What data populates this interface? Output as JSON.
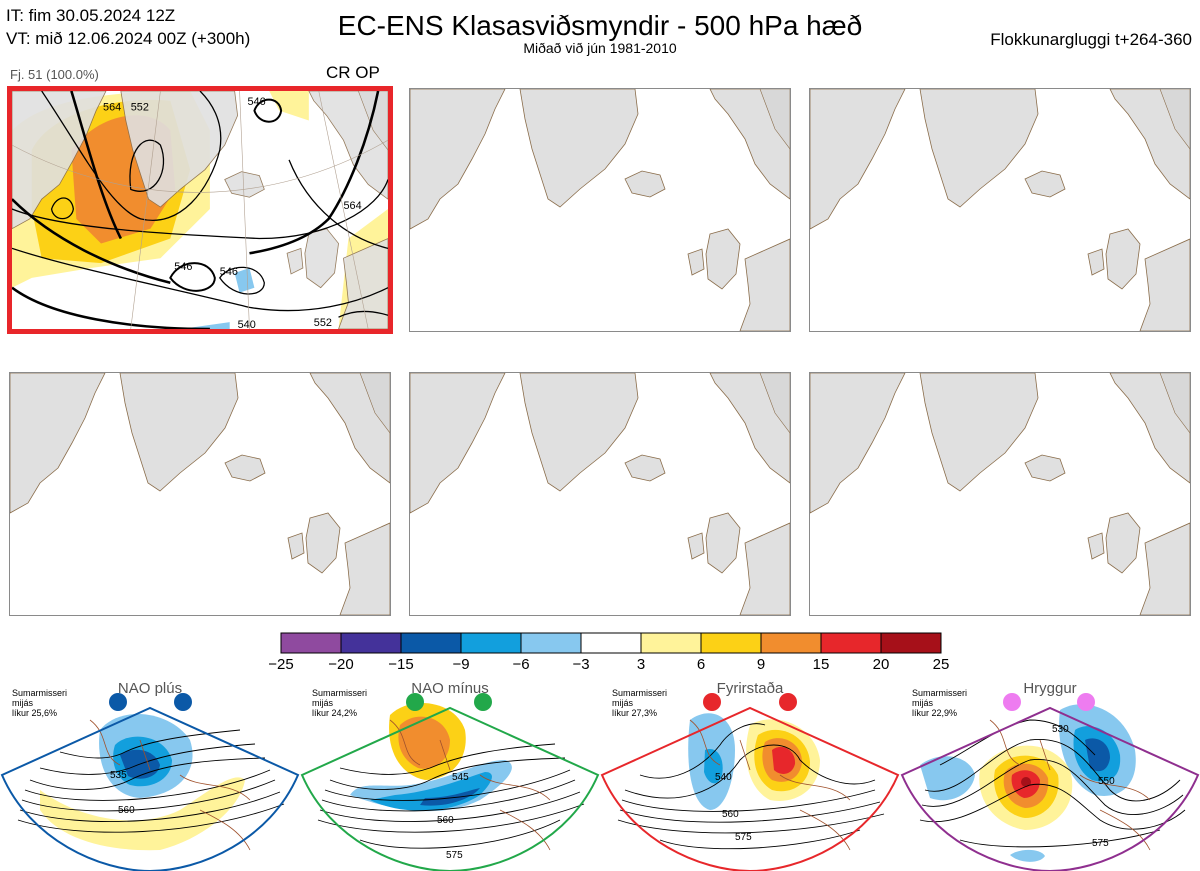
{
  "header": {
    "init_time": "IT: fim 30.05.2024 12Z",
    "valid_time": "VT: mið 12.06.2024 00Z  (+300h)",
    "title": "EC-ENS Klasasviðsmyndir - 500 hPa hæð",
    "subtitle": "Miðað við jún 1981-2010",
    "window": "Flokkunargluggi t+264-360"
  },
  "cluster": {
    "member_count": "Fj. 51 (100.0%)",
    "regime_code": "CR OP",
    "contour_labels": [
      "546",
      "546",
      "546",
      "540",
      "552",
      "564",
      "564",
      "552",
      "552"
    ]
  },
  "colorbar": {
    "ticks": [
      "−25",
      "−20",
      "−15",
      "−9",
      "−6",
      "−3",
      "3",
      "6",
      "9",
      "15",
      "20",
      "25"
    ],
    "colors": [
      "#8f4a9f",
      "#44329a",
      "#0b59a7",
      "#129fdd",
      "#87c8ef",
      "#ffffff",
      "#fff39a",
      "#fcd116",
      "#f18d2e",
      "#e7272b",
      "#a61019"
    ]
  },
  "regimes": [
    {
      "name": "NAO plús",
      "info": [
        "Sumarmisseri",
        "mijás",
        "líkur 25,6%"
      ],
      "color": "#0b59a7",
      "labels": [
        "535",
        "560"
      ]
    },
    {
      "name": "NAO mínus",
      "info": [
        "Sumarmisseri",
        "mijás",
        "líkur 24,2%"
      ],
      "color": "#22a84a",
      "labels": [
        "545",
        "560",
        "575"
      ]
    },
    {
      "name": "Fyrirstaða",
      "info": [
        "Sumarmisseri",
        "mijás",
        "líkur 27,3%"
      ],
      "color": "#e7272b",
      "labels": [
        "540",
        "560",
        "575"
      ]
    },
    {
      "name": "Hryggur",
      "info": [
        "Sumarmisseri",
        "mijás",
        "líkur 22,9%"
      ],
      "color": "#8f2f8f",
      "labels": [
        "530",
        "550",
        "575"
      ]
    }
  ]
}
